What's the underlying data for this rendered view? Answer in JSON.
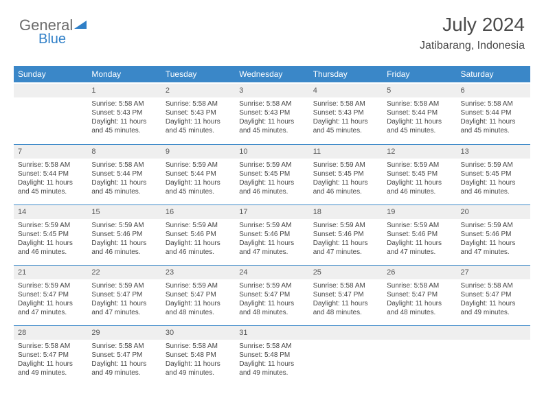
{
  "logo": {
    "text1": "General",
    "text2": "Blue"
  },
  "header": {
    "title": "July 2024",
    "location": "Jatibarang, Indonesia"
  },
  "colors": {
    "header_bg": "#3a87c8",
    "daynum_bg": "#efefef",
    "row_divider": "#3a87c8",
    "text": "#444444",
    "logo_gray": "#6b6b6b",
    "logo_blue": "#2f7fc7"
  },
  "weekdays": [
    "Sunday",
    "Monday",
    "Tuesday",
    "Wednesday",
    "Thursday",
    "Friday",
    "Saturday"
  ],
  "weeks": [
    [
      null,
      {
        "n": "1",
        "sr": "5:58 AM",
        "ss": "5:43 PM",
        "dl": "11 hours and 45 minutes."
      },
      {
        "n": "2",
        "sr": "5:58 AM",
        "ss": "5:43 PM",
        "dl": "11 hours and 45 minutes."
      },
      {
        "n": "3",
        "sr": "5:58 AM",
        "ss": "5:43 PM",
        "dl": "11 hours and 45 minutes."
      },
      {
        "n": "4",
        "sr": "5:58 AM",
        "ss": "5:43 PM",
        "dl": "11 hours and 45 minutes."
      },
      {
        "n": "5",
        "sr": "5:58 AM",
        "ss": "5:44 PM",
        "dl": "11 hours and 45 minutes."
      },
      {
        "n": "6",
        "sr": "5:58 AM",
        "ss": "5:44 PM",
        "dl": "11 hours and 45 minutes."
      }
    ],
    [
      {
        "n": "7",
        "sr": "5:58 AM",
        "ss": "5:44 PM",
        "dl": "11 hours and 45 minutes."
      },
      {
        "n": "8",
        "sr": "5:58 AM",
        "ss": "5:44 PM",
        "dl": "11 hours and 45 minutes."
      },
      {
        "n": "9",
        "sr": "5:59 AM",
        "ss": "5:44 PM",
        "dl": "11 hours and 45 minutes."
      },
      {
        "n": "10",
        "sr": "5:59 AM",
        "ss": "5:45 PM",
        "dl": "11 hours and 46 minutes."
      },
      {
        "n": "11",
        "sr": "5:59 AM",
        "ss": "5:45 PM",
        "dl": "11 hours and 46 minutes."
      },
      {
        "n": "12",
        "sr": "5:59 AM",
        "ss": "5:45 PM",
        "dl": "11 hours and 46 minutes."
      },
      {
        "n": "13",
        "sr": "5:59 AM",
        "ss": "5:45 PM",
        "dl": "11 hours and 46 minutes."
      }
    ],
    [
      {
        "n": "14",
        "sr": "5:59 AM",
        "ss": "5:45 PM",
        "dl": "11 hours and 46 minutes."
      },
      {
        "n": "15",
        "sr": "5:59 AM",
        "ss": "5:46 PM",
        "dl": "11 hours and 46 minutes."
      },
      {
        "n": "16",
        "sr": "5:59 AM",
        "ss": "5:46 PM",
        "dl": "11 hours and 46 minutes."
      },
      {
        "n": "17",
        "sr": "5:59 AM",
        "ss": "5:46 PM",
        "dl": "11 hours and 47 minutes."
      },
      {
        "n": "18",
        "sr": "5:59 AM",
        "ss": "5:46 PM",
        "dl": "11 hours and 47 minutes."
      },
      {
        "n": "19",
        "sr": "5:59 AM",
        "ss": "5:46 PM",
        "dl": "11 hours and 47 minutes."
      },
      {
        "n": "20",
        "sr": "5:59 AM",
        "ss": "5:46 PM",
        "dl": "11 hours and 47 minutes."
      }
    ],
    [
      {
        "n": "21",
        "sr": "5:59 AM",
        "ss": "5:47 PM",
        "dl": "11 hours and 47 minutes."
      },
      {
        "n": "22",
        "sr": "5:59 AM",
        "ss": "5:47 PM",
        "dl": "11 hours and 47 minutes."
      },
      {
        "n": "23",
        "sr": "5:59 AM",
        "ss": "5:47 PM",
        "dl": "11 hours and 48 minutes."
      },
      {
        "n": "24",
        "sr": "5:59 AM",
        "ss": "5:47 PM",
        "dl": "11 hours and 48 minutes."
      },
      {
        "n": "25",
        "sr": "5:58 AM",
        "ss": "5:47 PM",
        "dl": "11 hours and 48 minutes."
      },
      {
        "n": "26",
        "sr": "5:58 AM",
        "ss": "5:47 PM",
        "dl": "11 hours and 48 minutes."
      },
      {
        "n": "27",
        "sr": "5:58 AM",
        "ss": "5:47 PM",
        "dl": "11 hours and 49 minutes."
      }
    ],
    [
      {
        "n": "28",
        "sr": "5:58 AM",
        "ss": "5:47 PM",
        "dl": "11 hours and 49 minutes."
      },
      {
        "n": "29",
        "sr": "5:58 AM",
        "ss": "5:47 PM",
        "dl": "11 hours and 49 minutes."
      },
      {
        "n": "30",
        "sr": "5:58 AM",
        "ss": "5:48 PM",
        "dl": "11 hours and 49 minutes."
      },
      {
        "n": "31",
        "sr": "5:58 AM",
        "ss": "5:48 PM",
        "dl": "11 hours and 49 minutes."
      },
      null,
      null,
      null
    ]
  ],
  "labels": {
    "sunrise": "Sunrise:",
    "sunset": "Sunset:",
    "daylight": "Daylight:"
  }
}
